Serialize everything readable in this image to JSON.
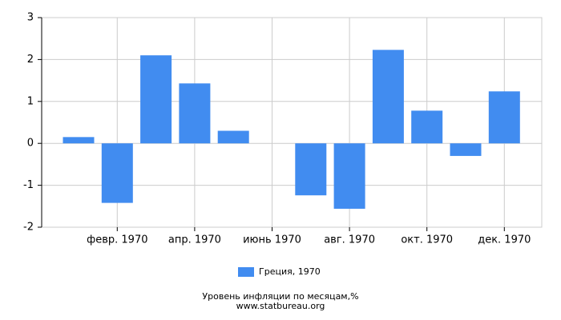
{
  "chart_data": {
    "type": "bar",
    "title": "Уровень инфляции по месяцам,%",
    "subtitle": "www.statbureau.org",
    "categories": [
      null,
      "февр. 1970",
      null,
      "апр. 1970",
      null,
      "июнь 1970",
      null,
      "авг. 1970",
      null,
      "окт. 1970",
      null,
      "дек. 1970"
    ],
    "series": [
      {
        "name": "Греция, 1970",
        "color": "#418cf0",
        "values": [
          0.15,
          -1.42,
          2.1,
          1.43,
          0.3,
          0,
          -1.24,
          -1.56,
          2.23,
          0.78,
          -0.3,
          1.24
        ]
      }
    ],
    "ylim": [
      -2,
      3
    ],
    "yticks": [
      -2,
      -1,
      0,
      1,
      2,
      3
    ],
    "grid": true
  }
}
